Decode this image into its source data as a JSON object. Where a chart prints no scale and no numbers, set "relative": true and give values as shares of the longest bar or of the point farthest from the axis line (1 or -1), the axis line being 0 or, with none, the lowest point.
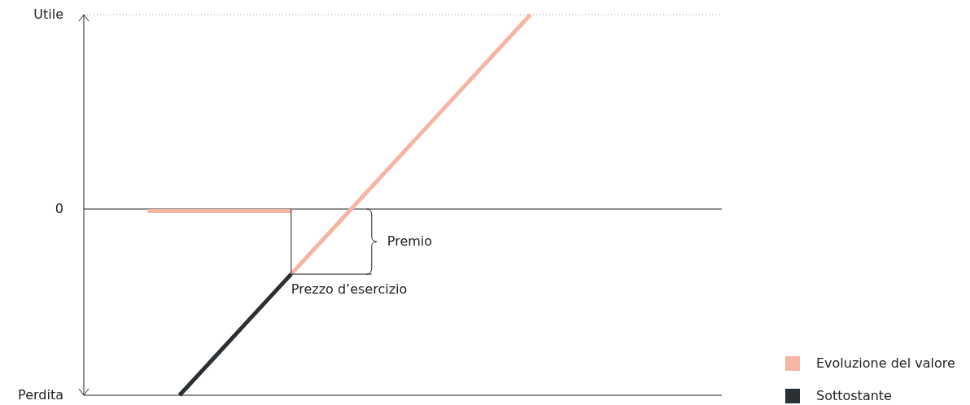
{
  "chart_data": {
    "type": "line",
    "relative": true,
    "legend": "bottom right",
    "grid": false,
    "line_style": "solid",
    "marker": "none",
    "categories": [
      null,
      null,
      null,
      null,
      null,
      null,
      null,
      null,
      null,
      null,
      null,
      null,
      null,
      null,
      null,
      null,
      null,
      null,
      null,
      null,
      null,
      null,
      null,
      null,
      null,
      null,
      null,
      null,
      null,
      null,
      null,
      null,
      null,
      null,
      null,
      null,
      null,
      null,
      null,
      null,
      null
    ],
    "series": [
      {
        "name": "Evoluzione del valore",
        "color": "#f7b5a3",
        "values": [
          null,
          null,
          null,
          null,
          null,
          null,
          null,
          null,
          null,
          null,
          null,
          null,
          null,
          -0.335,
          -0.246,
          -0.157,
          -0.068,
          0.021,
          0.11,
          0.199,
          0.288,
          0.377,
          0.466,
          0.555,
          0.644,
          0.733,
          0.822,
          0.911,
          1,
          null,
          null,
          null,
          null,
          null,
          null,
          null,
          null,
          null,
          null,
          null,
          null
        ]
      },
      {
        "color": "#f7b5a3",
        "values": [
          null,
          null,
          null,
          null,
          -0.01,
          -0.01,
          -0.01,
          -0.01,
          -0.01,
          -0.01,
          -0.01,
          -0.01,
          -0.01,
          -0.01,
          null,
          null,
          null,
          null,
          null,
          null,
          null,
          null,
          null,
          null,
          null,
          null,
          null,
          null,
          null,
          null,
          null,
          null,
          null,
          null,
          null,
          null,
          null,
          null,
          null,
          null,
          null
        ]
      },
      {
        "name": "Sottostante",
        "color": "#2b3035",
        "values": [
          null,
          null,
          null,
          null,
          null,
          null,
          -0.958,
          -0.869,
          -0.78,
          -0.691,
          -0.602,
          -0.513,
          -0.424,
          -0.335,
          null,
          null,
          null,
          null,
          null,
          null,
          null,
          null,
          null,
          null,
          null,
          null,
          null,
          null,
          null,
          null,
          null,
          null,
          null,
          null,
          null,
          null,
          null,
          null,
          null,
          null,
          null
        ]
      }
    ],
    "annotations": [
      "Utile",
      "0",
      "Perdita",
      "Premio",
      "Prezzo d’esercizio"
    ]
  }
}
